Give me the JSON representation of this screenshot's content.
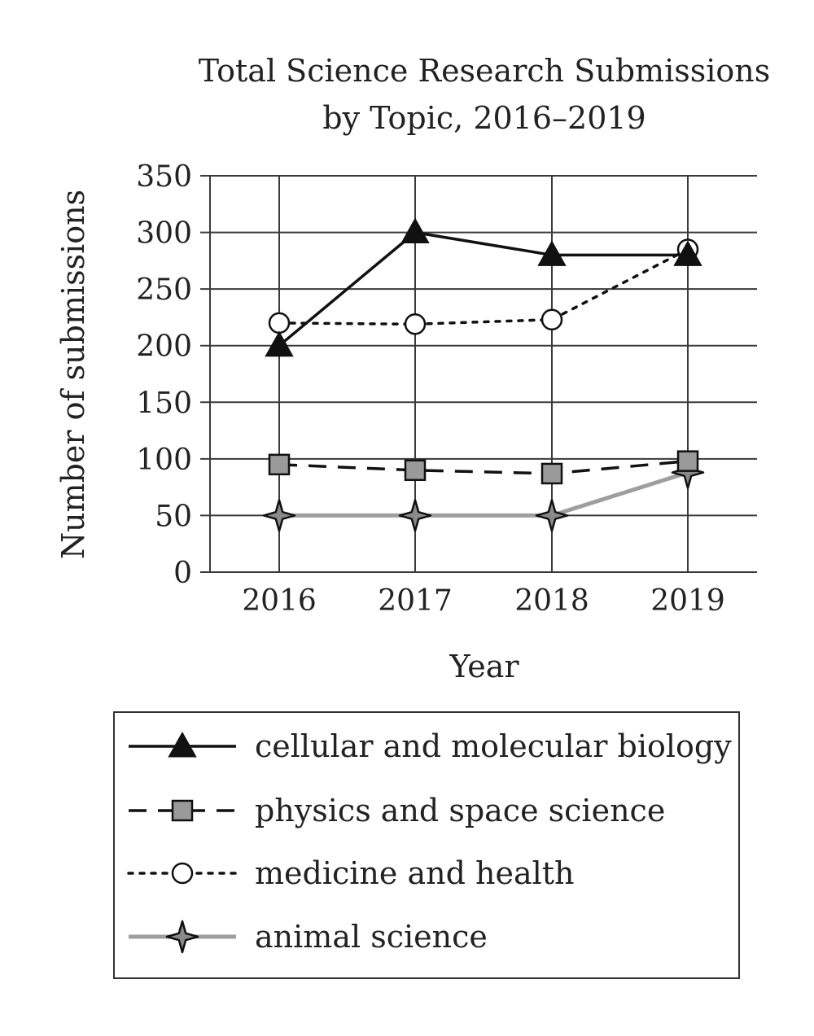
{
  "chart_data": {
    "type": "line",
    "title": "Total Science Research Submissions",
    "subtitle": "by Topic, 2016–2019",
    "xlabel": "Year",
    "ylabel": "Number of submissions",
    "categories": [
      "2016",
      "2017",
      "2018",
      "2019"
    ],
    "ylim": [
      0,
      350
    ],
    "yticks": [
      0,
      50,
      100,
      150,
      200,
      250,
      300,
      350
    ],
    "grid": true,
    "legend_position": "bottom",
    "series": [
      {
        "name": "cellular and molecular biology",
        "values": [
          200,
          300,
          280,
          280
        ],
        "line_style": "solid",
        "marker": "triangle",
        "line_color": "#111111",
        "marker_fill": "#111111"
      },
      {
        "name": "physics and space science",
        "values": [
          95,
          90,
          87,
          98
        ],
        "line_style": "dashed",
        "marker": "square",
        "line_color": "#111111",
        "marker_fill": "#9a9a9a"
      },
      {
        "name": "medicine and health",
        "values": [
          220,
          219,
          223,
          285
        ],
        "line_style": "dotted",
        "marker": "circle",
        "line_color": "#111111",
        "marker_fill": "#ffffff"
      },
      {
        "name": "animal science",
        "values": [
          50,
          50,
          50,
          88
        ],
        "line_style": "solid",
        "marker": "star4",
        "line_color": "#9e9e9e",
        "marker_fill": "#8a8a8a"
      }
    ]
  }
}
